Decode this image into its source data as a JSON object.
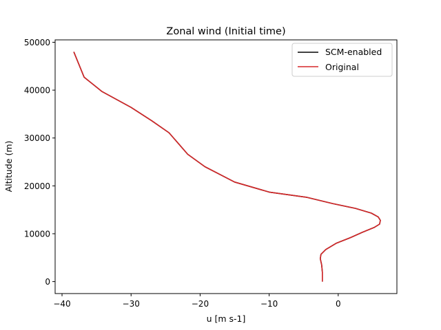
{
  "chart_data": {
    "type": "line",
    "title": "Zonal wind (Initial time)",
    "xlabel": "u [m s-1]",
    "ylabel": "Altitude (m)",
    "xlim": [
      -41,
      8.5
    ],
    "ylim": [
      -2500,
      50500
    ],
    "xticks": [
      -40,
      -30,
      -20,
      -10,
      0
    ],
    "xtick_labels": [
      "−40",
      "−30",
      "−20",
      "−10",
      "0"
    ],
    "yticks": [
      0,
      10000,
      20000,
      30000,
      40000,
      50000
    ],
    "ytick_labels": [
      "0",
      "10000",
      "20000",
      "30000",
      "40000",
      "50000"
    ],
    "grid": false,
    "legend_position": "top-right",
    "series": [
      {
        "name": "SCM-enabled",
        "color": "#000000",
        "x": [
          -2.3,
          -2.3,
          -2.4,
          -2.6,
          -2.5,
          -1.8,
          -0.3,
          1.8,
          3.5,
          5.2,
          6.0,
          6.1,
          5.8,
          4.8,
          2.5,
          -0.8,
          -4.5,
          -10.0,
          -15.0,
          -19.3,
          -21.8,
          -24.5,
          -27.0,
          -30.0,
          -34.2,
          -36.8,
          -38.3
        ],
        "y": [
          0,
          2000,
          3500,
          4800,
          5700,
          6700,
          8000,
          9200,
          10300,
          11300,
          12000,
          12800,
          13500,
          14300,
          15300,
          16300,
          17600,
          18700,
          20800,
          24000,
          26600,
          31100,
          33600,
          36400,
          39700,
          42700,
          48000
        ]
      },
      {
        "name": "Original",
        "color": "#d62728",
        "x": [
          -2.3,
          -2.3,
          -2.4,
          -2.6,
          -2.5,
          -1.8,
          -0.3,
          1.8,
          3.5,
          5.2,
          6.0,
          6.1,
          5.8,
          4.8,
          2.5,
          -0.8,
          -4.5,
          -10.0,
          -15.0,
          -19.3,
          -21.8,
          -24.5,
          -27.0,
          -30.0,
          -34.2,
          -36.8,
          -38.3
        ],
        "y": [
          0,
          2000,
          3500,
          4800,
          5700,
          6700,
          8000,
          9200,
          10300,
          11300,
          12000,
          12800,
          13500,
          14300,
          15300,
          16300,
          17600,
          18700,
          20800,
          24000,
          26600,
          31100,
          33600,
          36400,
          39700,
          42700,
          48000
        ]
      }
    ]
  }
}
